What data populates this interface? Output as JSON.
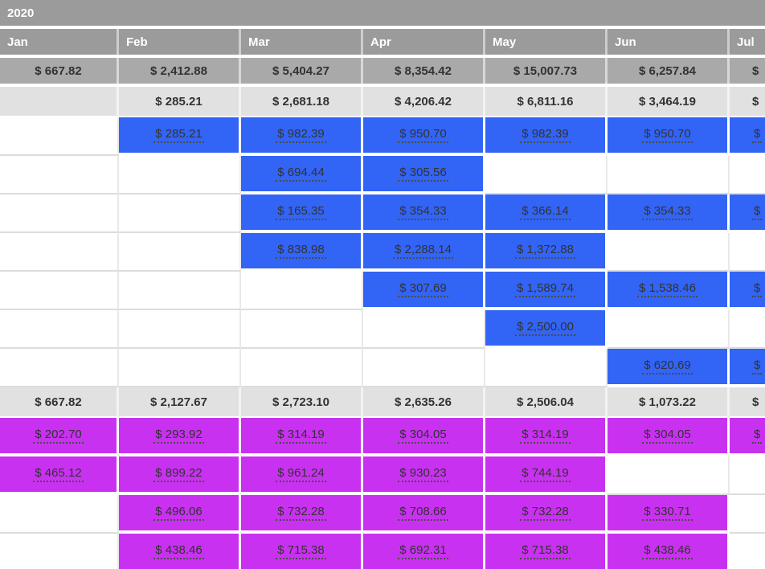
{
  "title": "2020",
  "columns": [
    "Jan",
    "Feb",
    "Mar",
    "Apr",
    "May",
    "Jun",
    "Jul"
  ],
  "colors": {
    "header_gray": "#9b9b9b",
    "summary_gray": "#a9a9a9",
    "summary_light_gray": "#e1e1e1",
    "income_blue": "#3264f5",
    "expense_magenta": "#c931f0"
  },
  "rows": [
    {
      "kind": "summary-gray",
      "cells": [
        "$ 667.82",
        "$ 2,412.88",
        "$ 5,404.27",
        "$ 8,354.42",
        "$ 15,007.73",
        "$ 6,257.84",
        "$"
      ]
    },
    {
      "kind": "summary-light",
      "cells": [
        null,
        "$ 285.21",
        "$ 2,681.18",
        "$ 4,206.42",
        "$ 6,811.16",
        "$ 3,464.19",
        "$"
      ]
    },
    {
      "kind": "blue",
      "cells": [
        null,
        "$ 285.21",
        "$ 982.39",
        "$ 950.70",
        "$ 982.39",
        "$ 950.70",
        "$"
      ]
    },
    {
      "kind": "blue",
      "cells": [
        null,
        null,
        "$ 694.44",
        "$ 305.56",
        null,
        null,
        null
      ]
    },
    {
      "kind": "blue",
      "cells": [
        null,
        null,
        "$ 165.35",
        "$ 354.33",
        "$ 366.14",
        "$ 354.33",
        "$"
      ]
    },
    {
      "kind": "blue",
      "cells": [
        null,
        null,
        "$ 838.98",
        "$ 2,288.14",
        "$ 1,372.88",
        null,
        null
      ]
    },
    {
      "kind": "blue",
      "cells": [
        null,
        null,
        null,
        "$ 307.69",
        "$ 1,589.74",
        "$ 1,538.46",
        "$"
      ]
    },
    {
      "kind": "blue",
      "cells": [
        null,
        null,
        null,
        null,
        "$ 2,500.00",
        null,
        null
      ]
    },
    {
      "kind": "blue",
      "cells": [
        null,
        null,
        null,
        null,
        null,
        "$ 620.69",
        "$"
      ]
    },
    {
      "kind": "summary-light",
      "cells": [
        "$ 667.82",
        "$ 2,127.67",
        "$ 2,723.10",
        "$ 2,635.26",
        "$ 2,506.04",
        "$ 1,073.22",
        "$"
      ]
    },
    {
      "kind": "magenta",
      "cells": [
        "$ 202.70",
        "$ 293.92",
        "$ 314.19",
        "$ 304.05",
        "$ 314.19",
        "$ 304.05",
        "$"
      ]
    },
    {
      "kind": "magenta",
      "cells": [
        "$ 465.12",
        "$ 899.22",
        "$ 961.24",
        "$ 930.23",
        "$ 744.19",
        null,
        null
      ]
    },
    {
      "kind": "magenta",
      "cells": [
        null,
        "$ 496.06",
        "$ 732.28",
        "$ 708.66",
        "$ 732.28",
        "$ 330.71",
        null
      ]
    },
    {
      "kind": "magenta",
      "cells": [
        null,
        "$ 438.46",
        "$ 715.38",
        "$ 692.31",
        "$ 715.38",
        "$ 438.46",
        null
      ]
    }
  ]
}
